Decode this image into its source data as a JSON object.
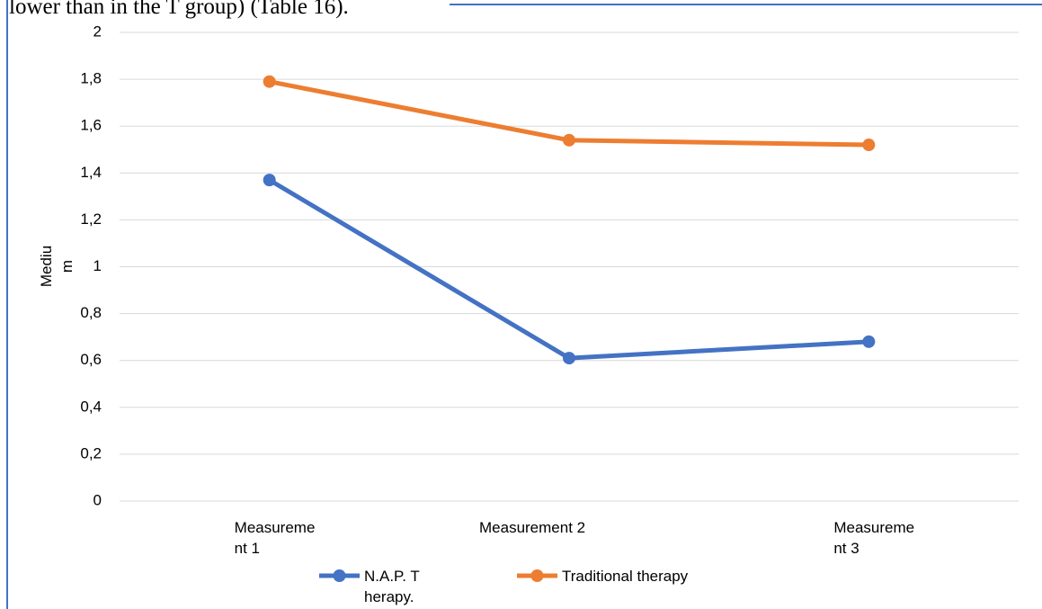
{
  "text_above": "lower than in the T group) (Table 16).",
  "chart_data": {
    "type": "line",
    "y_label": "Medium",
    "categories": [
      "Measurement 1",
      "Measurement 2",
      "Measurement 3"
    ],
    "series": [
      {
        "name": "N.A.P. Therapy.",
        "color": "#4472c4",
        "values": [
          1.37,
          0.61,
          0.68
        ]
      },
      {
        "name": "Traditional therapy",
        "color": "#ed7d31",
        "values": [
          1.79,
          1.54,
          1.52
        ]
      }
    ],
    "ylim": [
      0,
      2
    ],
    "yticks": [
      0,
      {
        "value": 0.2,
        "label": "0,2"
      },
      {
        "value": 0.4,
        "label": "0,4"
      },
      {
        "value": 0.6,
        "label": "0,6"
      },
      {
        "value": 0.8,
        "label": "0,8"
      },
      1,
      {
        "value": 1.2,
        "label": "1,2"
      },
      {
        "value": 1.4,
        "label": "1,4"
      },
      {
        "value": 1.6,
        "label": "1,6"
      },
      {
        "value": 1.8,
        "label": "1,8"
      },
      2
    ],
    "grid": true,
    "legend": "bottom"
  }
}
